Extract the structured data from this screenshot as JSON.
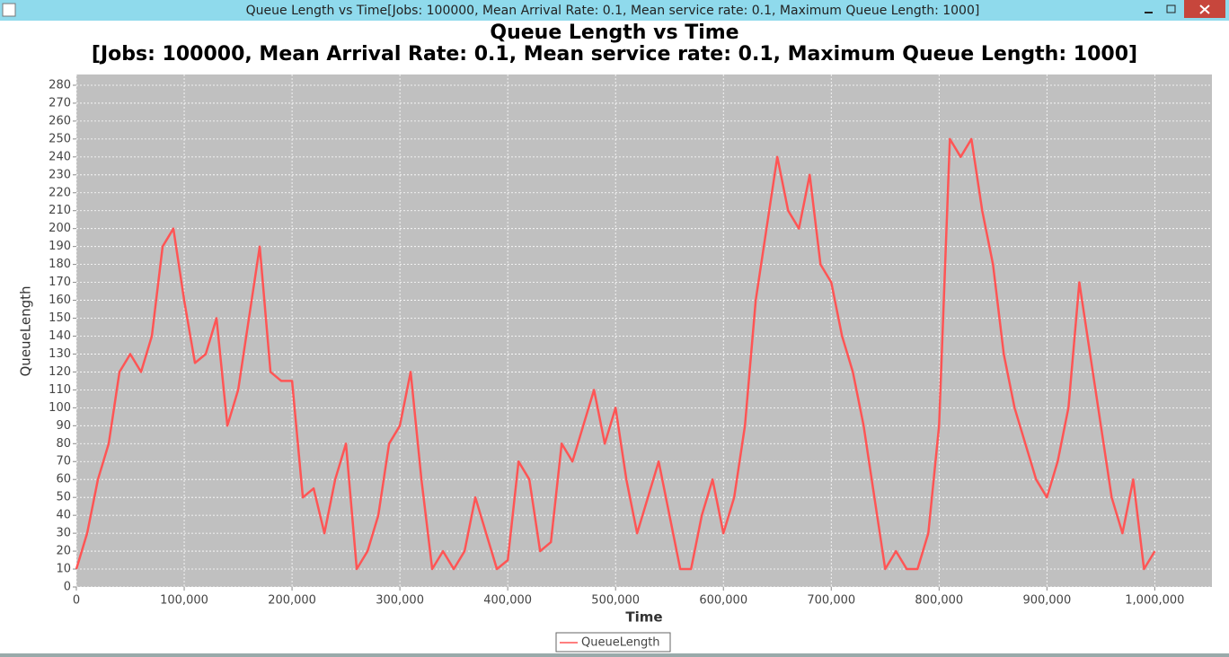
{
  "window_title": "Queue Length vs Time[Jobs: 100000, Mean Arrival Rate: 0.1, Mean service rate: 0.1, Maximum Queue Length: 1000]",
  "chart_data": {
    "type": "line",
    "title": "Queue Length vs Time",
    "subtitle": "[Jobs: 100000, Mean Arrival Rate: 0.1, Mean service rate: 0.1, Maximum Queue Length: 1000]",
    "x_label": "Time",
    "y_label": "QueueLength",
    "grid": true,
    "legend": "bottom",
    "xlim": [
      0,
      1053000
    ],
    "ylim": [
      0,
      286
    ],
    "xticks": [
      0,
      {
        "value": 100000,
        "label": "100,000"
      },
      {
        "value": 200000,
        "label": "200,000"
      },
      {
        "value": 300000,
        "label": "300,000"
      },
      {
        "value": 400000,
        "label": "400,000"
      },
      {
        "value": 500000,
        "label": "500,000"
      },
      {
        "value": 600000,
        "label": "600,000"
      },
      {
        "value": 700000,
        "label": "700,000"
      },
      {
        "value": 800000,
        "label": "800,000"
      },
      {
        "value": 900000,
        "label": "900,000"
      },
      {
        "value": 1000000,
        "label": "1,000,000"
      }
    ],
    "yticks": [
      0,
      10,
      20,
      30,
      40,
      50,
      60,
      70,
      80,
      90,
      100,
      110,
      120,
      130,
      140,
      150,
      160,
      170,
      180,
      190,
      200,
      210,
      220,
      230,
      240,
      250,
      260,
      270,
      280
    ],
    "x": [
      0,
      10000,
      20000,
      30000,
      40000,
      50000,
      60000,
      70000,
      80000,
      90000,
      100000,
      110000,
      120000,
      130000,
      140000,
      150000,
      160000,
      170000,
      180000,
      190000,
      200000,
      210000,
      220000,
      230000,
      240000,
      250000,
      260000,
      270000,
      280000,
      290000,
      300000,
      310000,
      320000,
      330000,
      340000,
      350000,
      360000,
      370000,
      380000,
      390000,
      400000,
      410000,
      420000,
      430000,
      440000,
      450000,
      460000,
      470000,
      480000,
      490000,
      500000,
      510000,
      520000,
      530000,
      540000,
      550000,
      560000,
      570000,
      580000,
      590000,
      600000,
      610000,
      620000,
      630000,
      640000,
      650000,
      660000,
      670000,
      680000,
      690000,
      700000,
      710000,
      720000,
      730000,
      740000,
      750000,
      760000,
      770000,
      780000,
      790000,
      800000,
      810000,
      820000,
      830000,
      840000,
      850000,
      860000,
      870000,
      880000,
      890000,
      900000,
      910000,
      920000,
      930000,
      940000,
      950000,
      960000,
      970000,
      980000,
      990000,
      1000000
    ],
    "series": [
      {
        "name": "QueueLength",
        "color": "#ff5555",
        "values": [
          10,
          30,
          60,
          80,
          120,
          130,
          120,
          140,
          190,
          200,
          160,
          125,
          130,
          150,
          90,
          110,
          150,
          190,
          120,
          115,
          115,
          50,
          55,
          30,
          60,
          80,
          10,
          20,
          40,
          80,
          90,
          120,
          60,
          10,
          20,
          10,
          20,
          50,
          30,
          10,
          15,
          70,
          60,
          20,
          25,
          80,
          70,
          90,
          110,
          80,
          100,
          60,
          30,
          50,
          70,
          40,
          10,
          10,
          40,
          60,
          30,
          50,
          90,
          160,
          200,
          240,
          210,
          200,
          230,
          180,
          170,
          140,
          120,
          90,
          50,
          10,
          20,
          10,
          10,
          30,
          90,
          250,
          240,
          250,
          210,
          180,
          130,
          100,
          80,
          60,
          50,
          70,
          100,
          170,
          130,
          90,
          50,
          30,
          60,
          10,
          20
        ]
      }
    ]
  }
}
